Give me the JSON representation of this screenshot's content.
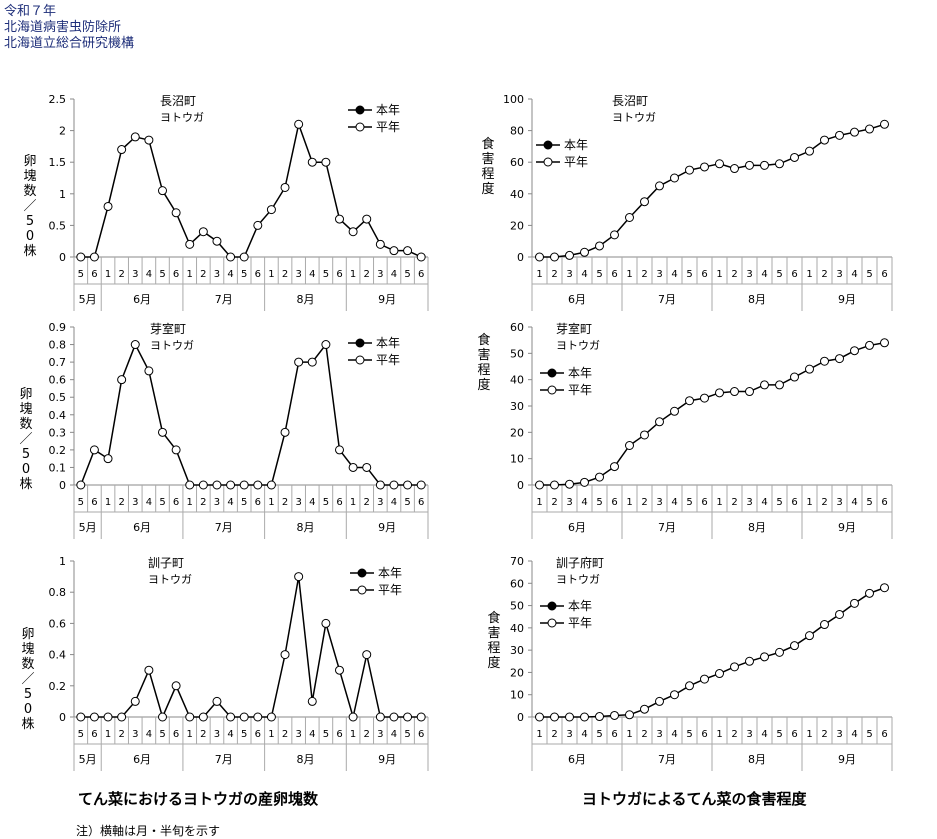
{
  "header": {
    "line1": "令和７年",
    "line2": "北海道病害虫防除所",
    "line3": "北海道立総合研究機構"
  },
  "captions": {
    "left": "てん菜におけるヨトウガの産卵塊数",
    "right": "ヨトウガによるてん菜の食害程度"
  },
  "note": "注）横軸は月・半旬を示す",
  "chart_data": [
    {
      "type": "line",
      "title": "長沼町",
      "subtitle": "ヨトウガ",
      "ylabel": "卵塊数／50株",
      "ylim": [
        0,
        2.5
      ],
      "yticks": [
        "0",
        "0.5",
        "1",
        "1.5",
        "2",
        "2.5"
      ],
      "x_halfmonths": [
        "5",
        "6",
        "1",
        "2",
        "3",
        "4",
        "5",
        "6",
        "1",
        "2",
        "3",
        "4",
        "5",
        "6",
        "1",
        "2",
        "3",
        "4",
        "5",
        "6",
        "1",
        "2",
        "3",
        "4",
        "5",
        "6"
      ],
      "months": [
        "5月",
        "6月",
        "7月",
        "8月",
        "9月"
      ],
      "series": [
        {
          "name": "本年",
          "values": []
        },
        {
          "name": "平年",
          "values": [
            0,
            0,
            0.8,
            1.7,
            1.9,
            1.85,
            1.05,
            0.7,
            0.2,
            0.4,
            0.25,
            0,
            0,
            0.5,
            0.75,
            1.1,
            2.1,
            1.5,
            1.5,
            0.6,
            0.4,
            0.6,
            0.2,
            0.1,
            0.1,
            0
          ]
        }
      ],
      "legend": "top-right"
    },
    {
      "type": "line",
      "title": "芽室町",
      "subtitle": "ヨトウガ",
      "ylabel": "卵塊数／50株",
      "ylim": [
        0,
        0.9
      ],
      "yticks": [
        "0",
        "0.1",
        "0.2",
        "0.3",
        "0.4",
        "0.5",
        "0.6",
        "0.7",
        "0.8",
        "0.9"
      ],
      "x_halfmonths": [
        "5",
        "6",
        "1",
        "2",
        "3",
        "4",
        "5",
        "6",
        "1",
        "2",
        "3",
        "4",
        "5",
        "6",
        "1",
        "2",
        "3",
        "4",
        "5",
        "6",
        "1",
        "2",
        "3",
        "4",
        "5",
        "6"
      ],
      "months": [
        "5月",
        "6月",
        "7月",
        "8月",
        "9月"
      ],
      "series": [
        {
          "name": "本年",
          "values": []
        },
        {
          "name": "平年",
          "values": [
            0,
            0.2,
            0.15,
            0.6,
            0.8,
            0.65,
            0.3,
            0.2,
            0,
            0,
            0,
            0,
            0,
            0,
            0,
            0.3,
            0.7,
            0.7,
            0.8,
            0.2,
            0.1,
            0.1,
            0,
            0,
            0,
            0
          ]
        }
      ],
      "legend": "top-right"
    },
    {
      "type": "line",
      "title": "訓子町",
      "subtitle": "ヨトウガ",
      "ylabel": "卵塊数／50株",
      "ylim": [
        0,
        1
      ],
      "yticks": [
        "0",
        "0.2",
        "0.4",
        "0.6",
        "0.8",
        "1"
      ],
      "x_halfmonths": [
        "5",
        "6",
        "1",
        "2",
        "3",
        "4",
        "5",
        "6",
        "1",
        "2",
        "3",
        "4",
        "5",
        "6",
        "1",
        "2",
        "3",
        "4",
        "5",
        "6",
        "1",
        "2",
        "3",
        "4",
        "5",
        "6"
      ],
      "months": [
        "5月",
        "6月",
        "7月",
        "8月",
        "9月"
      ],
      "series": [
        {
          "name": "本年",
          "values": []
        },
        {
          "name": "平年",
          "values": [
            0,
            0,
            0,
            0,
            0.1,
            0.3,
            0,
            0.2,
            0,
            0,
            0.1,
            0,
            0,
            0,
            0,
            0.4,
            0.9,
            0.1,
            0.6,
            0.3,
            0,
            0.4,
            0,
            0,
            0,
            0
          ]
        }
      ],
      "legend": "top-right"
    },
    {
      "type": "line",
      "title": "長沼町",
      "subtitle": "ヨトウガ",
      "ylabel": "食害程度",
      "ylim": [
        0,
        100
      ],
      "yticks": [
        "0",
        "20",
        "40",
        "60",
        "80",
        "100"
      ],
      "x_halfmonths": [
        "1",
        "2",
        "3",
        "4",
        "5",
        "6",
        "1",
        "2",
        "3",
        "4",
        "5",
        "6",
        "1",
        "2",
        "3",
        "4",
        "5",
        "6",
        "1",
        "2",
        "3",
        "4",
        "5",
        "6"
      ],
      "months": [
        "6月",
        "7月",
        "8月",
        "9月"
      ],
      "series": [
        {
          "name": "本年",
          "values": []
        },
        {
          "name": "平年",
          "values": [
            0,
            0,
            1,
            3,
            7,
            14,
            25,
            35,
            45,
            50,
            55,
            57,
            59,
            56,
            58,
            58,
            59,
            63,
            67,
            74,
            77,
            79,
            81,
            84
          ]
        }
      ],
      "legend": "top-left"
    },
    {
      "type": "line",
      "title": "芽室町",
      "subtitle": "ヨトウガ",
      "ylabel": "食害程度",
      "ylim": [
        0,
        60
      ],
      "yticks": [
        "0",
        "10",
        "20",
        "30",
        "40",
        "50",
        "60"
      ],
      "x_halfmonths": [
        "1",
        "2",
        "3",
        "4",
        "5",
        "6",
        "1",
        "2",
        "3",
        "4",
        "5",
        "6",
        "1",
        "2",
        "3",
        "4",
        "5",
        "6",
        "1",
        "2",
        "3",
        "4",
        "5",
        "6"
      ],
      "months": [
        "6月",
        "7月",
        "8月",
        "9月"
      ],
      "series": [
        {
          "name": "本年",
          "values": []
        },
        {
          "name": "平年",
          "values": [
            0,
            0,
            0.3,
            1,
            3,
            7,
            15,
            19,
            24,
            28,
            32,
            33,
            35,
            35.5,
            35.5,
            38,
            38,
            41,
            44,
            47,
            48,
            51,
            53,
            54
          ]
        }
      ],
      "legend": "top-left"
    },
    {
      "type": "line",
      "title": "訓子府町",
      "subtitle": "ヨトウガ",
      "ylabel": "食害程度",
      "ylim": [
        0,
        70
      ],
      "yticks": [
        "0",
        "10",
        "20",
        "30",
        "40",
        "50",
        "60",
        "70"
      ],
      "x_halfmonths": [
        "1",
        "2",
        "3",
        "4",
        "5",
        "6",
        "1",
        "2",
        "3",
        "4",
        "5",
        "6",
        "1",
        "2",
        "3",
        "4",
        "5",
        "6",
        "1",
        "2",
        "3",
        "4",
        "5",
        "6"
      ],
      "months": [
        "6月",
        "7月",
        "8月",
        "9月"
      ],
      "series": [
        {
          "name": "本年",
          "values": []
        },
        {
          "name": "平年",
          "values": [
            0,
            0,
            0,
            0,
            0.2,
            0.7,
            1,
            3.5,
            7,
            10,
            14,
            17,
            19.5,
            22.5,
            25,
            27,
            29,
            32,
            36.5,
            41.5,
            46,
            51,
            55.5,
            58
          ]
        }
      ],
      "legend": "top-left"
    }
  ]
}
